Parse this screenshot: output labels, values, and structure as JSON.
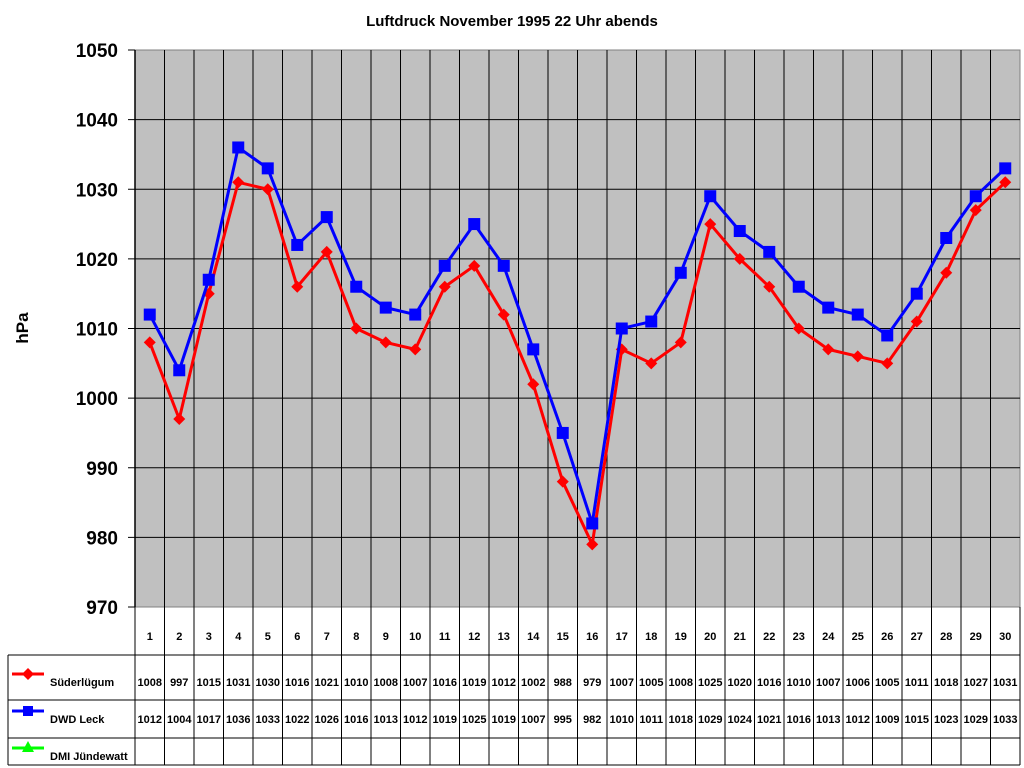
{
  "chart_data": {
    "type": "line",
    "title": "Luftdruck November 1995 22 Uhr abends",
    "xlabel": "",
    "ylabel": "hPa",
    "ylim": [
      970,
      1050
    ],
    "yticks": [
      970,
      980,
      990,
      1000,
      1010,
      1020,
      1030,
      1040,
      1050
    ],
    "grid": true,
    "legend_position": "data-table-left",
    "categories": [
      "1",
      "2",
      "3",
      "4",
      "5",
      "6",
      "7",
      "8",
      "9",
      "10",
      "11",
      "12",
      "13",
      "14",
      "15",
      "16",
      "17",
      "18",
      "19",
      "20",
      "21",
      "22",
      "23",
      "24",
      "25",
      "26",
      "27",
      "28",
      "29",
      "30"
    ],
    "series": [
      {
        "name": "Süderlügum",
        "color": "#ff0000",
        "marker": "diamond",
        "values": [
          1008,
          997,
          1015,
          1031,
          1030,
          1016,
          1021,
          1010,
          1008,
          1007,
          1016,
          1019,
          1012,
          1002,
          988,
          979,
          1007,
          1005,
          1008,
          1025,
          1020,
          1016,
          1010,
          1007,
          1006,
          1005,
          1011,
          1018,
          1027,
          1031
        ]
      },
      {
        "name": "DWD Leck",
        "color": "#0000ff",
        "marker": "square",
        "values": [
          1012,
          1004,
          1017,
          1036,
          1033,
          1022,
          1026,
          1016,
          1013,
          1012,
          1019,
          1025,
          1019,
          1007,
          995,
          982,
          1010,
          1011,
          1018,
          1029,
          1024,
          1021,
          1016,
          1013,
          1012,
          1009,
          1015,
          1023,
          1029,
          1033
        ]
      },
      {
        "name": "DMI Jündewatt",
        "color": "#00ff00",
        "marker": "triangle",
        "values": [
          null,
          null,
          null,
          null,
          null,
          null,
          null,
          null,
          null,
          null,
          null,
          null,
          null,
          null,
          null,
          null,
          null,
          null,
          null,
          null,
          null,
          null,
          null,
          null,
          null,
          null,
          null,
          null,
          null,
          null
        ]
      }
    ]
  },
  "colors": {
    "plot_background": "#c0c0c0",
    "grid": "#000000"
  }
}
